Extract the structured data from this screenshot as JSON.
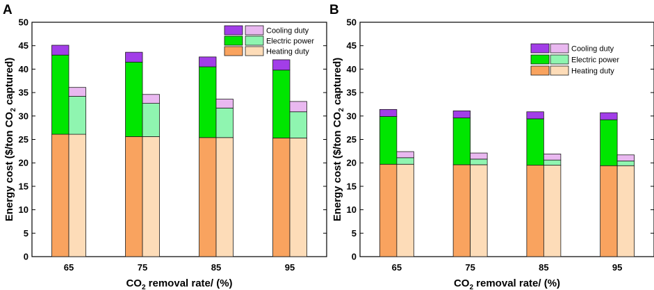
{
  "chart_data": [
    {
      "panel": "A",
      "type": "bar",
      "stacked": true,
      "categories": [
        "65",
        "75",
        "85",
        "95"
      ],
      "series_groups": [
        "solid",
        "light"
      ],
      "groups": {
        "solid": [
          {
            "name": "Heating duty",
            "values": [
              26.1,
              25.6,
              25.4,
              25.3
            ]
          },
          {
            "name": "Electric power",
            "values": [
              16.9,
              15.9,
              15.1,
              14.5
            ]
          },
          {
            "name": "Cooling duty",
            "values": [
              2.1,
              2.1,
              2.1,
              2.2
            ]
          }
        ],
        "light": [
          {
            "name": "Heating duty",
            "values": [
              26.1,
              25.6,
              25.4,
              25.3
            ]
          },
          {
            "name": "Electric power",
            "values": [
              8.1,
              7.1,
              6.3,
              5.6
            ]
          },
          {
            "name": "Cooling duty",
            "values": [
              1.9,
              1.9,
              1.9,
              2.2
            ]
          }
        ]
      },
      "xlabel_main": "CO",
      "xlabel_sub": "2",
      "xlabel_rest": " removal rate/ (%)",
      "ylabel_parts": [
        "Energy cost ($/ton CO",
        "2",
        " captured)"
      ],
      "ylim": [
        0,
        50
      ],
      "yticks": [
        "0",
        "5",
        "10",
        "15",
        "20",
        "25",
        "30",
        "35",
        "40",
        "45",
        "50"
      ],
      "legend": [
        "Cooling duty",
        "Electric power",
        "Heating duty"
      ],
      "legend_position": "top-right"
    },
    {
      "panel": "B",
      "type": "bar",
      "stacked": true,
      "categories": [
        "65",
        "75",
        "85",
        "95"
      ],
      "series_groups": [
        "solid",
        "light"
      ],
      "groups": {
        "solid": [
          {
            "name": "Heating duty",
            "values": [
              19.7,
              19.6,
              19.5,
              19.4
            ]
          },
          {
            "name": "Electric power",
            "values": [
              10.2,
              10.0,
              9.9,
              9.8
            ]
          },
          {
            "name": "Cooling duty",
            "values": [
              1.5,
              1.5,
              1.5,
              1.5
            ]
          }
        ],
        "light": [
          {
            "name": "Heating duty",
            "values": [
              19.7,
              19.6,
              19.5,
              19.4
            ]
          },
          {
            "name": "Electric power",
            "values": [
              1.4,
              1.2,
              1.1,
              1.0
            ]
          },
          {
            "name": "Cooling duty",
            "values": [
              1.3,
              1.3,
              1.3,
              1.3
            ]
          }
        ]
      },
      "xlabel_main": "CO",
      "xlabel_sub": "2",
      "xlabel_rest": " removal rate/ (%)",
      "ylabel_parts": [
        "Energy cost ($/ton CO",
        "2",
        " captured)"
      ],
      "ylim": [
        0,
        50
      ],
      "yticks": [
        "0",
        "5",
        "10",
        "15",
        "20",
        "25",
        "30",
        "35",
        "40",
        "45",
        "50"
      ],
      "legend": [
        "Cooling duty",
        "Electric power",
        "Heating duty"
      ],
      "legend_position": "upper-right-center"
    }
  ],
  "colors": {
    "solid": {
      "Heating duty": "#f9a35f",
      "Electric power": "#00e600",
      "Cooling duty": "#a23ee8"
    },
    "light": {
      "Heating duty": "#fddcb8",
      "Electric power": "#8ff5b0",
      "Cooling duty": "#e9b8f0"
    },
    "stroke": "#1a1a1a"
  }
}
